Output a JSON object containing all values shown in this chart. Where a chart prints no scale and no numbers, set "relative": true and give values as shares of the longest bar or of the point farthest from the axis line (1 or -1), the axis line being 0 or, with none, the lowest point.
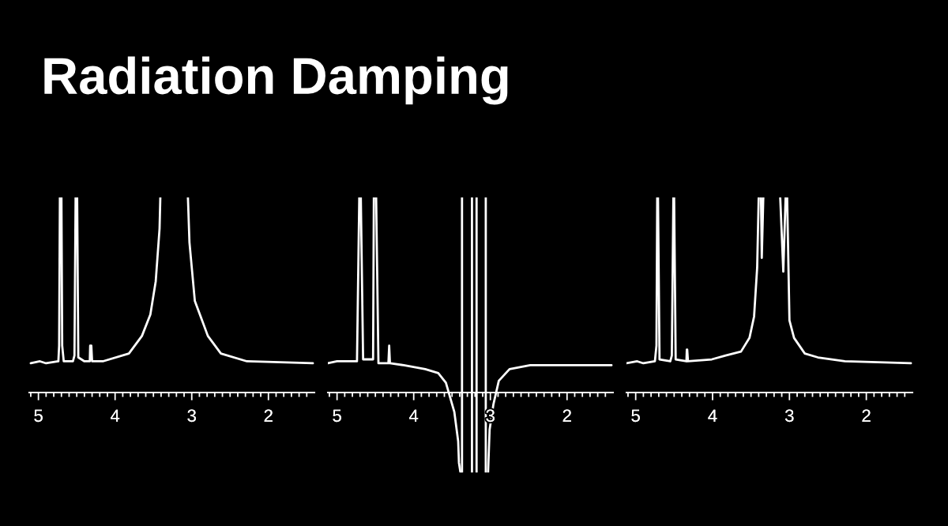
{
  "chart_data": [
    {
      "type": "line",
      "title": "Radiation Damping",
      "relative": true,
      "xlim": [
        5.12,
        1.4
      ],
      "tick_labels": "x",
      "xticks": [
        {
          "value": 5.1,
          "label": null
        },
        5,
        {
          "value": 4.9,
          "label": null
        },
        {
          "value": 4.8,
          "label": null
        },
        {
          "value": 4.7,
          "label": null
        },
        {
          "value": 4.6,
          "label": null
        },
        {
          "value": 4.5,
          "label": null
        },
        {
          "value": 4.4,
          "label": null
        },
        {
          "value": 4.3,
          "label": null
        },
        {
          "value": 4.2,
          "label": null
        },
        {
          "value": 4.1,
          "label": null
        },
        4,
        {
          "value": 3.9,
          "label": null
        },
        {
          "value": 3.8,
          "label": null
        },
        {
          "value": 3.7,
          "label": null
        },
        {
          "value": 3.6,
          "label": null
        },
        {
          "value": 3.5,
          "label": null
        },
        {
          "value": 3.4,
          "label": null
        },
        {
          "value": 3.3,
          "label": null
        },
        {
          "value": 3.2,
          "label": null
        },
        {
          "value": 3.1,
          "label": null
        },
        3,
        {
          "value": 2.9,
          "label": null
        },
        {
          "value": 2.8,
          "label": null
        },
        {
          "value": 2.7,
          "label": null
        },
        {
          "value": 2.6,
          "label": null
        },
        {
          "value": 2.5,
          "label": null
        },
        {
          "value": 2.4,
          "label": null
        },
        {
          "value": 2.3,
          "label": null
        },
        {
          "value": 2.2,
          "label": null
        },
        {
          "value": 2.1,
          "label": null
        },
        2,
        {
          "value": 1.9,
          "label": null
        },
        {
          "value": 1.8,
          "label": null
        },
        {
          "value": 1.7,
          "label": null
        },
        {
          "value": 1.6,
          "label": null
        },
        {
          "value": 1.5,
          "label": null
        }
      ],
      "series": [
        {
          "color": "#ffffff",
          "x": [
            5.1,
            4.98,
            4.9,
            4.74,
            4.73,
            4.72,
            4.7,
            4.69,
            4.67,
            4.55,
            4.53,
            4.515,
            4.495,
            4.48,
            4.4,
            4.33,
            4.325,
            4.31,
            4.3,
            4.16,
            3.82,
            3.65,
            3.54,
            3.47,
            3.42,
            3.41,
            3.23,
            3.05,
            3.03,
            2.96,
            2.79,
            2.62,
            2.28,
            1.42
          ],
          "values": [
            0.15,
            0.16,
            0.15,
            0.16,
            0.24,
            1,
            1,
            0.24,
            0.16,
            0.16,
            0.19,
            1,
            1,
            0.18,
            0.16,
            0.16,
            0.24,
            0.24,
            0.16,
            0.16,
            0.2,
            0.29,
            0.4,
            0.57,
            0.84,
            1,
            null,
            1,
            0.77,
            0.47,
            0.29,
            0.2,
            0.16,
            0.15
          ]
        }
      ]
    },
    {
      "type": "line",
      "relative": true,
      "xlim": [
        5.12,
        1.4
      ],
      "tick_labels": "x",
      "xticks": [
        {
          "value": 5.1,
          "label": null
        },
        5,
        {
          "value": 4.9,
          "label": null
        },
        {
          "value": 4.8,
          "label": null
        },
        {
          "value": 4.7,
          "label": null
        },
        {
          "value": 4.6,
          "label": null
        },
        {
          "value": 4.5,
          "label": null
        },
        {
          "value": 4.4,
          "label": null
        },
        {
          "value": 4.3,
          "label": null
        },
        {
          "value": 4.2,
          "label": null
        },
        {
          "value": 4.1,
          "label": null
        },
        4,
        {
          "value": 3.9,
          "label": null
        },
        {
          "value": 3.8,
          "label": null
        },
        {
          "value": 3.7,
          "label": null
        },
        {
          "value": 3.6,
          "label": null
        },
        {
          "value": 3.5,
          "label": null
        },
        {
          "value": 3.4,
          "label": null
        },
        {
          "value": 3.3,
          "label": null
        },
        {
          "value": 3.2,
          "label": null
        },
        {
          "value": 3.1,
          "label": null
        },
        3,
        {
          "value": 2.9,
          "label": null
        },
        {
          "value": 2.8,
          "label": null
        },
        {
          "value": 2.7,
          "label": null
        },
        {
          "value": 2.6,
          "label": null
        },
        {
          "value": 2.5,
          "label": null
        },
        {
          "value": 2.4,
          "label": null
        },
        {
          "value": 2.3,
          "label": null
        },
        {
          "value": 2.2,
          "label": null
        },
        {
          "value": 2.1,
          "label": null
        },
        2,
        {
          "value": 1.9,
          "label": null
        },
        {
          "value": 1.8,
          "label": null
        },
        {
          "value": 1.7,
          "label": null
        },
        {
          "value": 1.6,
          "label": null
        },
        {
          "value": 1.5,
          "label": null
        }
      ],
      "series": [
        {
          "color": "#ffffff",
          "x": [
            5.12,
            5.0,
            4.74,
            4.71,
            4.69,
            4.66,
            4.53,
            4.52,
            4.49,
            4.46,
            4.33,
            4.32,
            4.31,
            4.13,
            3.85,
            3.68,
            3.58,
            3.47,
            3.42,
            3.41,
            3.39
          ],
          "values": [
            0.15,
            0.16,
            0.16,
            1,
            1,
            0.17,
            0.17,
            1,
            1,
            0.15,
            0.15,
            0.24,
            0.15,
            0.14,
            0.12,
            0.1,
            0.05,
            -0.1,
            -0.25,
            -0.36,
            -0.41
          ]
        },
        {
          "color": "#ffffff",
          "x": [
            3.37,
            3.37
          ],
          "values": [
            -0.41,
            1
          ]
        },
        {
          "color": "#ffffff",
          "x": [
            3.24,
            3.24
          ],
          "values": [
            -0.41,
            1
          ]
        },
        {
          "color": "#ffffff",
          "x": [
            3.18,
            3.18
          ],
          "values": [
            -0.41,
            1
          ]
        },
        {
          "color": "#ffffff",
          "x": [
            3.06,
            3.06
          ],
          "values": [
            -0.41,
            1
          ]
        },
        {
          "color": "#ffffff",
          "x": [
            3.03,
            3.01,
            2.96,
            2.89,
            2.75,
            2.48,
            1.42
          ],
          "values": [
            -0.41,
            -0.19,
            -0.06,
            0.06,
            0.12,
            0.14,
            0.14
          ]
        }
      ]
    },
    {
      "type": "line",
      "relative": true,
      "xlim": [
        5.12,
        1.4
      ],
      "tick_labels": "x",
      "xticks": [
        {
          "value": 5.1,
          "label": null
        },
        5,
        {
          "value": 4.9,
          "label": null
        },
        {
          "value": 4.8,
          "label": null
        },
        {
          "value": 4.7,
          "label": null
        },
        {
          "value": 4.6,
          "label": null
        },
        {
          "value": 4.5,
          "label": null
        },
        {
          "value": 4.4,
          "label": null
        },
        {
          "value": 4.3,
          "label": null
        },
        {
          "value": 4.2,
          "label": null
        },
        {
          "value": 4.1,
          "label": null
        },
        4,
        {
          "value": 3.9,
          "label": null
        },
        {
          "value": 3.8,
          "label": null
        },
        {
          "value": 3.7,
          "label": null
        },
        {
          "value": 3.6,
          "label": null
        },
        {
          "value": 3.5,
          "label": null
        },
        {
          "value": 3.4,
          "label": null
        },
        {
          "value": 3.3,
          "label": null
        },
        {
          "value": 3.2,
          "label": null
        },
        {
          "value": 3.1,
          "label": null
        },
        3,
        {
          "value": 2.9,
          "label": null
        },
        {
          "value": 2.8,
          "label": null
        },
        {
          "value": 2.7,
          "label": null
        },
        {
          "value": 2.6,
          "label": null
        },
        {
          "value": 2.5,
          "label": null
        },
        {
          "value": 2.4,
          "label": null
        },
        {
          "value": 2.3,
          "label": null
        },
        {
          "value": 2.2,
          "label": null
        },
        {
          "value": 2.1,
          "label": null
        },
        2,
        {
          "value": 1.9,
          "label": null
        },
        {
          "value": 1.8,
          "label": null
        },
        {
          "value": 1.7,
          "label": null
        },
        {
          "value": 1.6,
          "label": null
        },
        {
          "value": 1.5,
          "label": null
        }
      ],
      "series": [
        {
          "color": "#ffffff",
          "x": [
            5.12,
            4.98,
            4.9,
            4.75,
            4.73,
            4.72,
            4.71,
            4.69,
            4.55,
            4.53,
            4.51,
            4.5,
            4.48,
            4.34,
            4.335,
            4.33,
            4.32,
            4.01,
            3.83,
            3.63,
            3.52,
            3.46,
            3.42,
            3.4,
            3.38,
            3.37,
            3.36,
            3.34,
            3.23,
            3.12,
            3.08,
            3.05,
            3.04,
            3.03,
            3.0,
            2.94,
            2.8,
            2.63,
            2.28,
            1.42
          ],
          "values": [
            0.15,
            0.16,
            0.15,
            0.16,
            0.24,
            1,
            1,
            0.17,
            0.16,
            0.19,
            1,
            1,
            0.17,
            0.16,
            0.22,
            0.22,
            0.16,
            0.17,
            0.19,
            0.21,
            0.28,
            0.39,
            0.64,
            1,
            null,
            1,
            0.69,
            1,
            null,
            1,
            0.62,
            1,
            null,
            1,
            0.37,
            0.28,
            0.2,
            0.18,
            0.16,
            0.15
          ]
        }
      ]
    }
  ]
}
